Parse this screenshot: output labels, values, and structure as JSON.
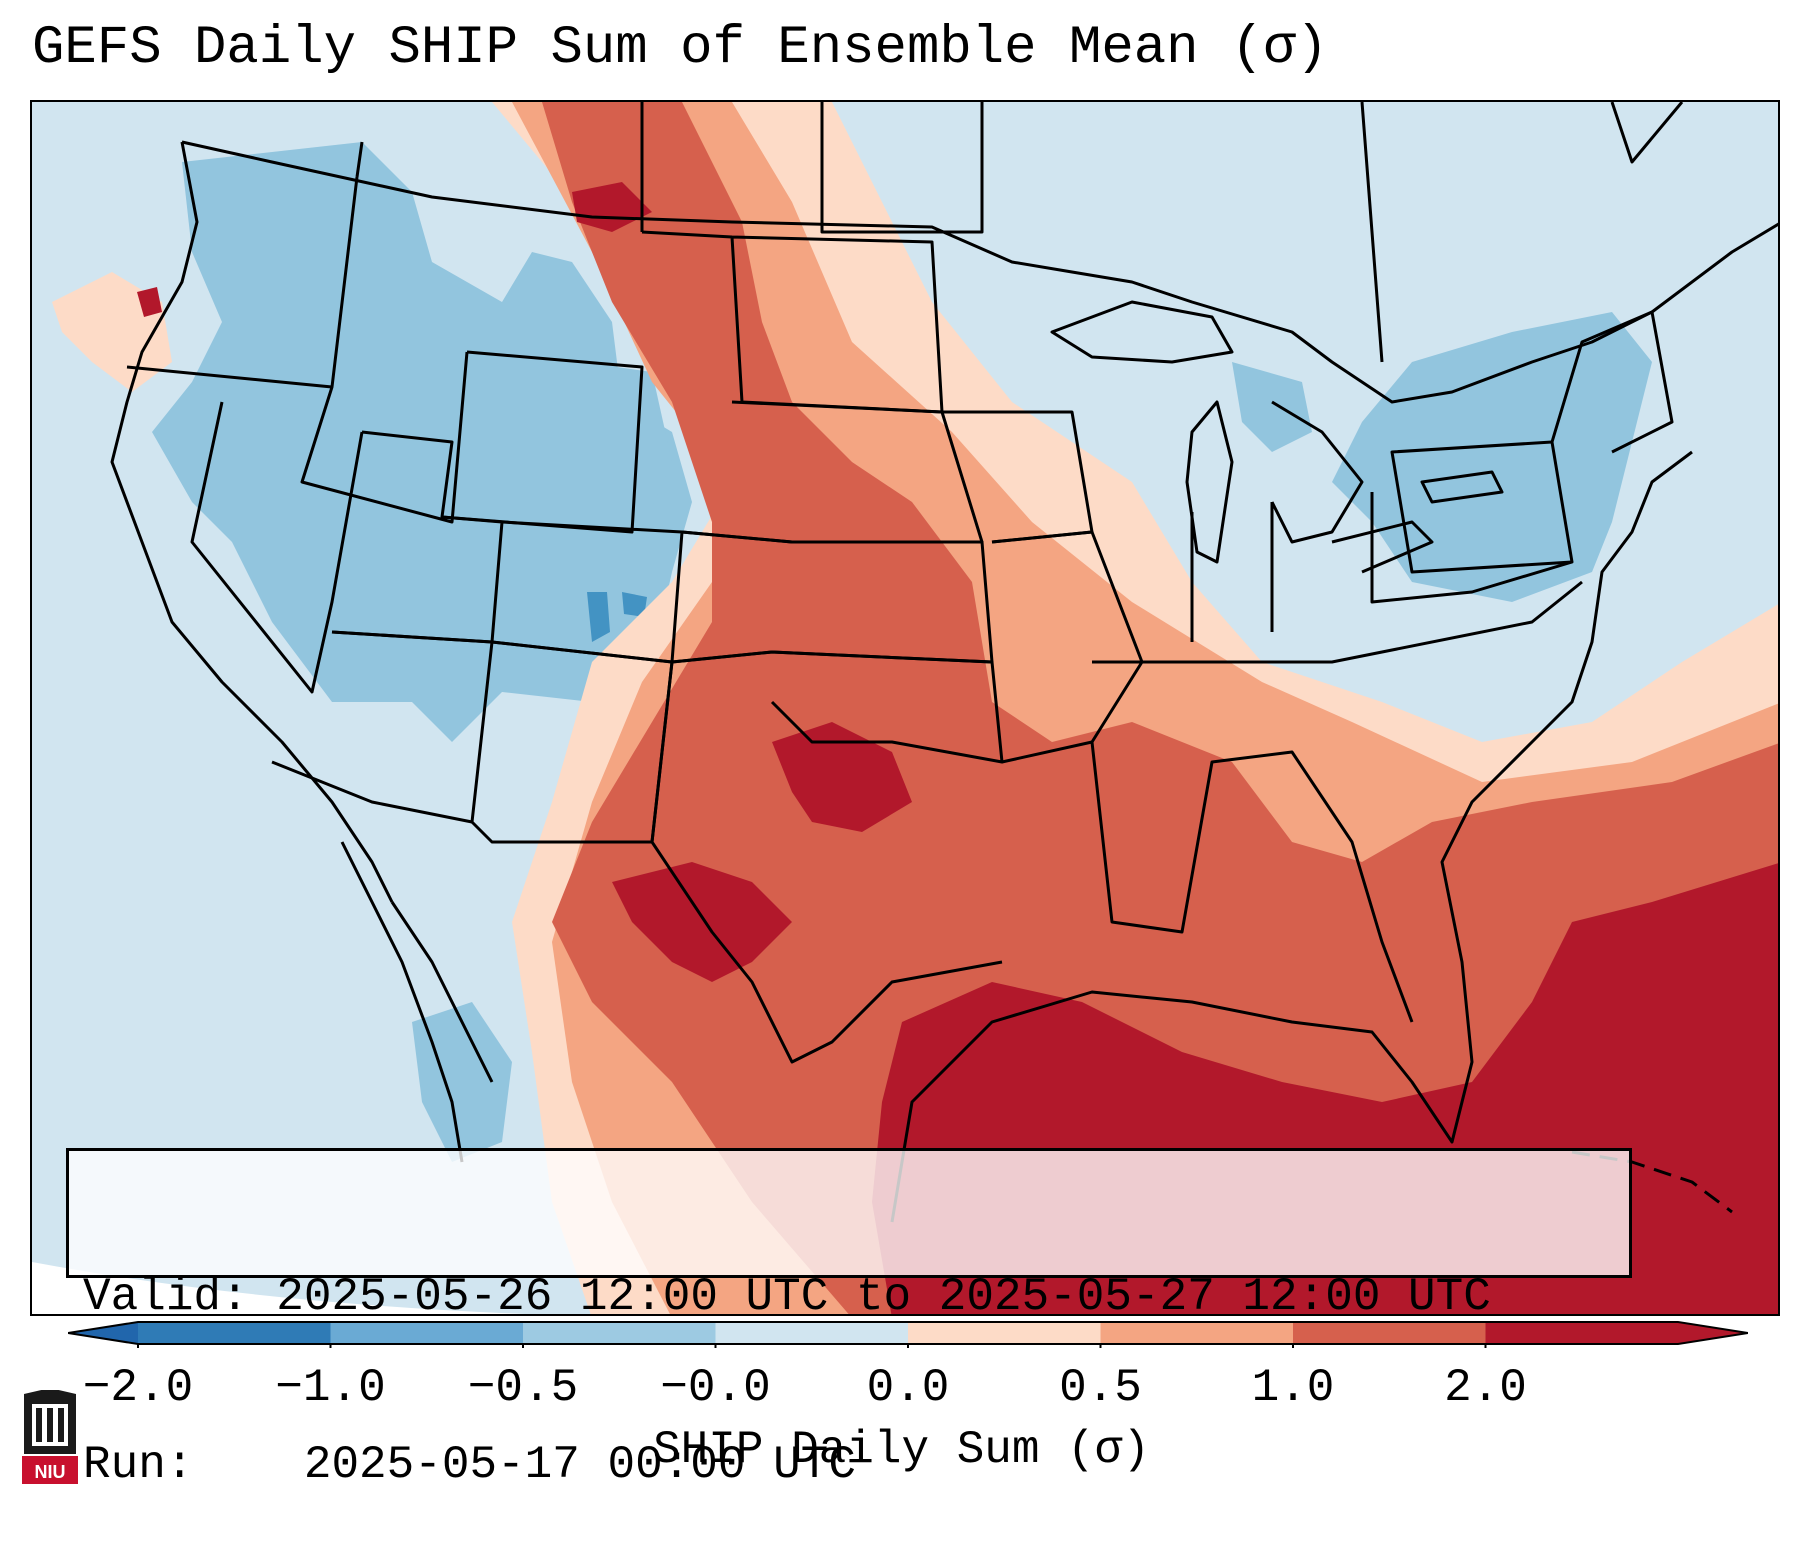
{
  "title": "GEFS Daily SHIP Sum of Ensemble Mean (σ)",
  "info": {
    "valid_label": "Valid:",
    "valid_value": "2025-05-26 12:00 UTC to 2025-05-27 12:00 UTC",
    "run_label": "Run:",
    "run_value": "2025-05-17 00:00 UTC"
  },
  "colorbar": {
    "label": "SHIP Daily Sum (σ)",
    "ticks": [
      "−2.0",
      "−1.0",
      "−0.5",
      "−0.0",
      "0.0",
      "0.5",
      "1.0",
      "2.0"
    ],
    "colors": [
      "#2f7bb6",
      "#6aaad4",
      "#9dcae2",
      "#d1e5f0",
      "#fddbc7",
      "#f4a582",
      "#d6604d",
      "#b2182b"
    ],
    "extend_low_color": "#2166ac",
    "extend_high_color": "#b2182b"
  },
  "logo": {
    "text": "NIU",
    "color": "#c8102e"
  }
}
